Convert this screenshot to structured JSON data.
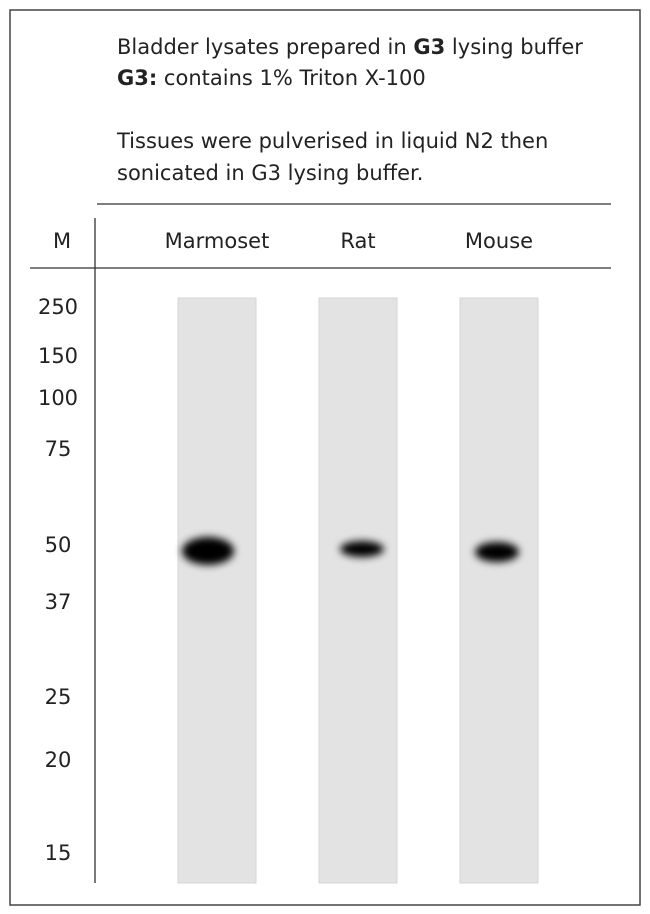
{
  "header": {
    "line1": [
      "Bladder lysates prepared in ",
      "G3",
      " lysing buffer"
    ],
    "line2": [
      "G3:",
      " contains 1% Triton X-100"
    ],
    "note": [
      "Tissues were pulverised in liquid N2 then",
      "sonicated in G3 lysing buffer."
    ]
  },
  "blot": {
    "marker_header": "M",
    "lanes": [
      "Marmoset",
      "Rat",
      "Mouse"
    ],
    "markers": [
      250,
      150,
      100,
      75,
      50,
      37,
      25,
      20,
      15
    ]
  }
}
